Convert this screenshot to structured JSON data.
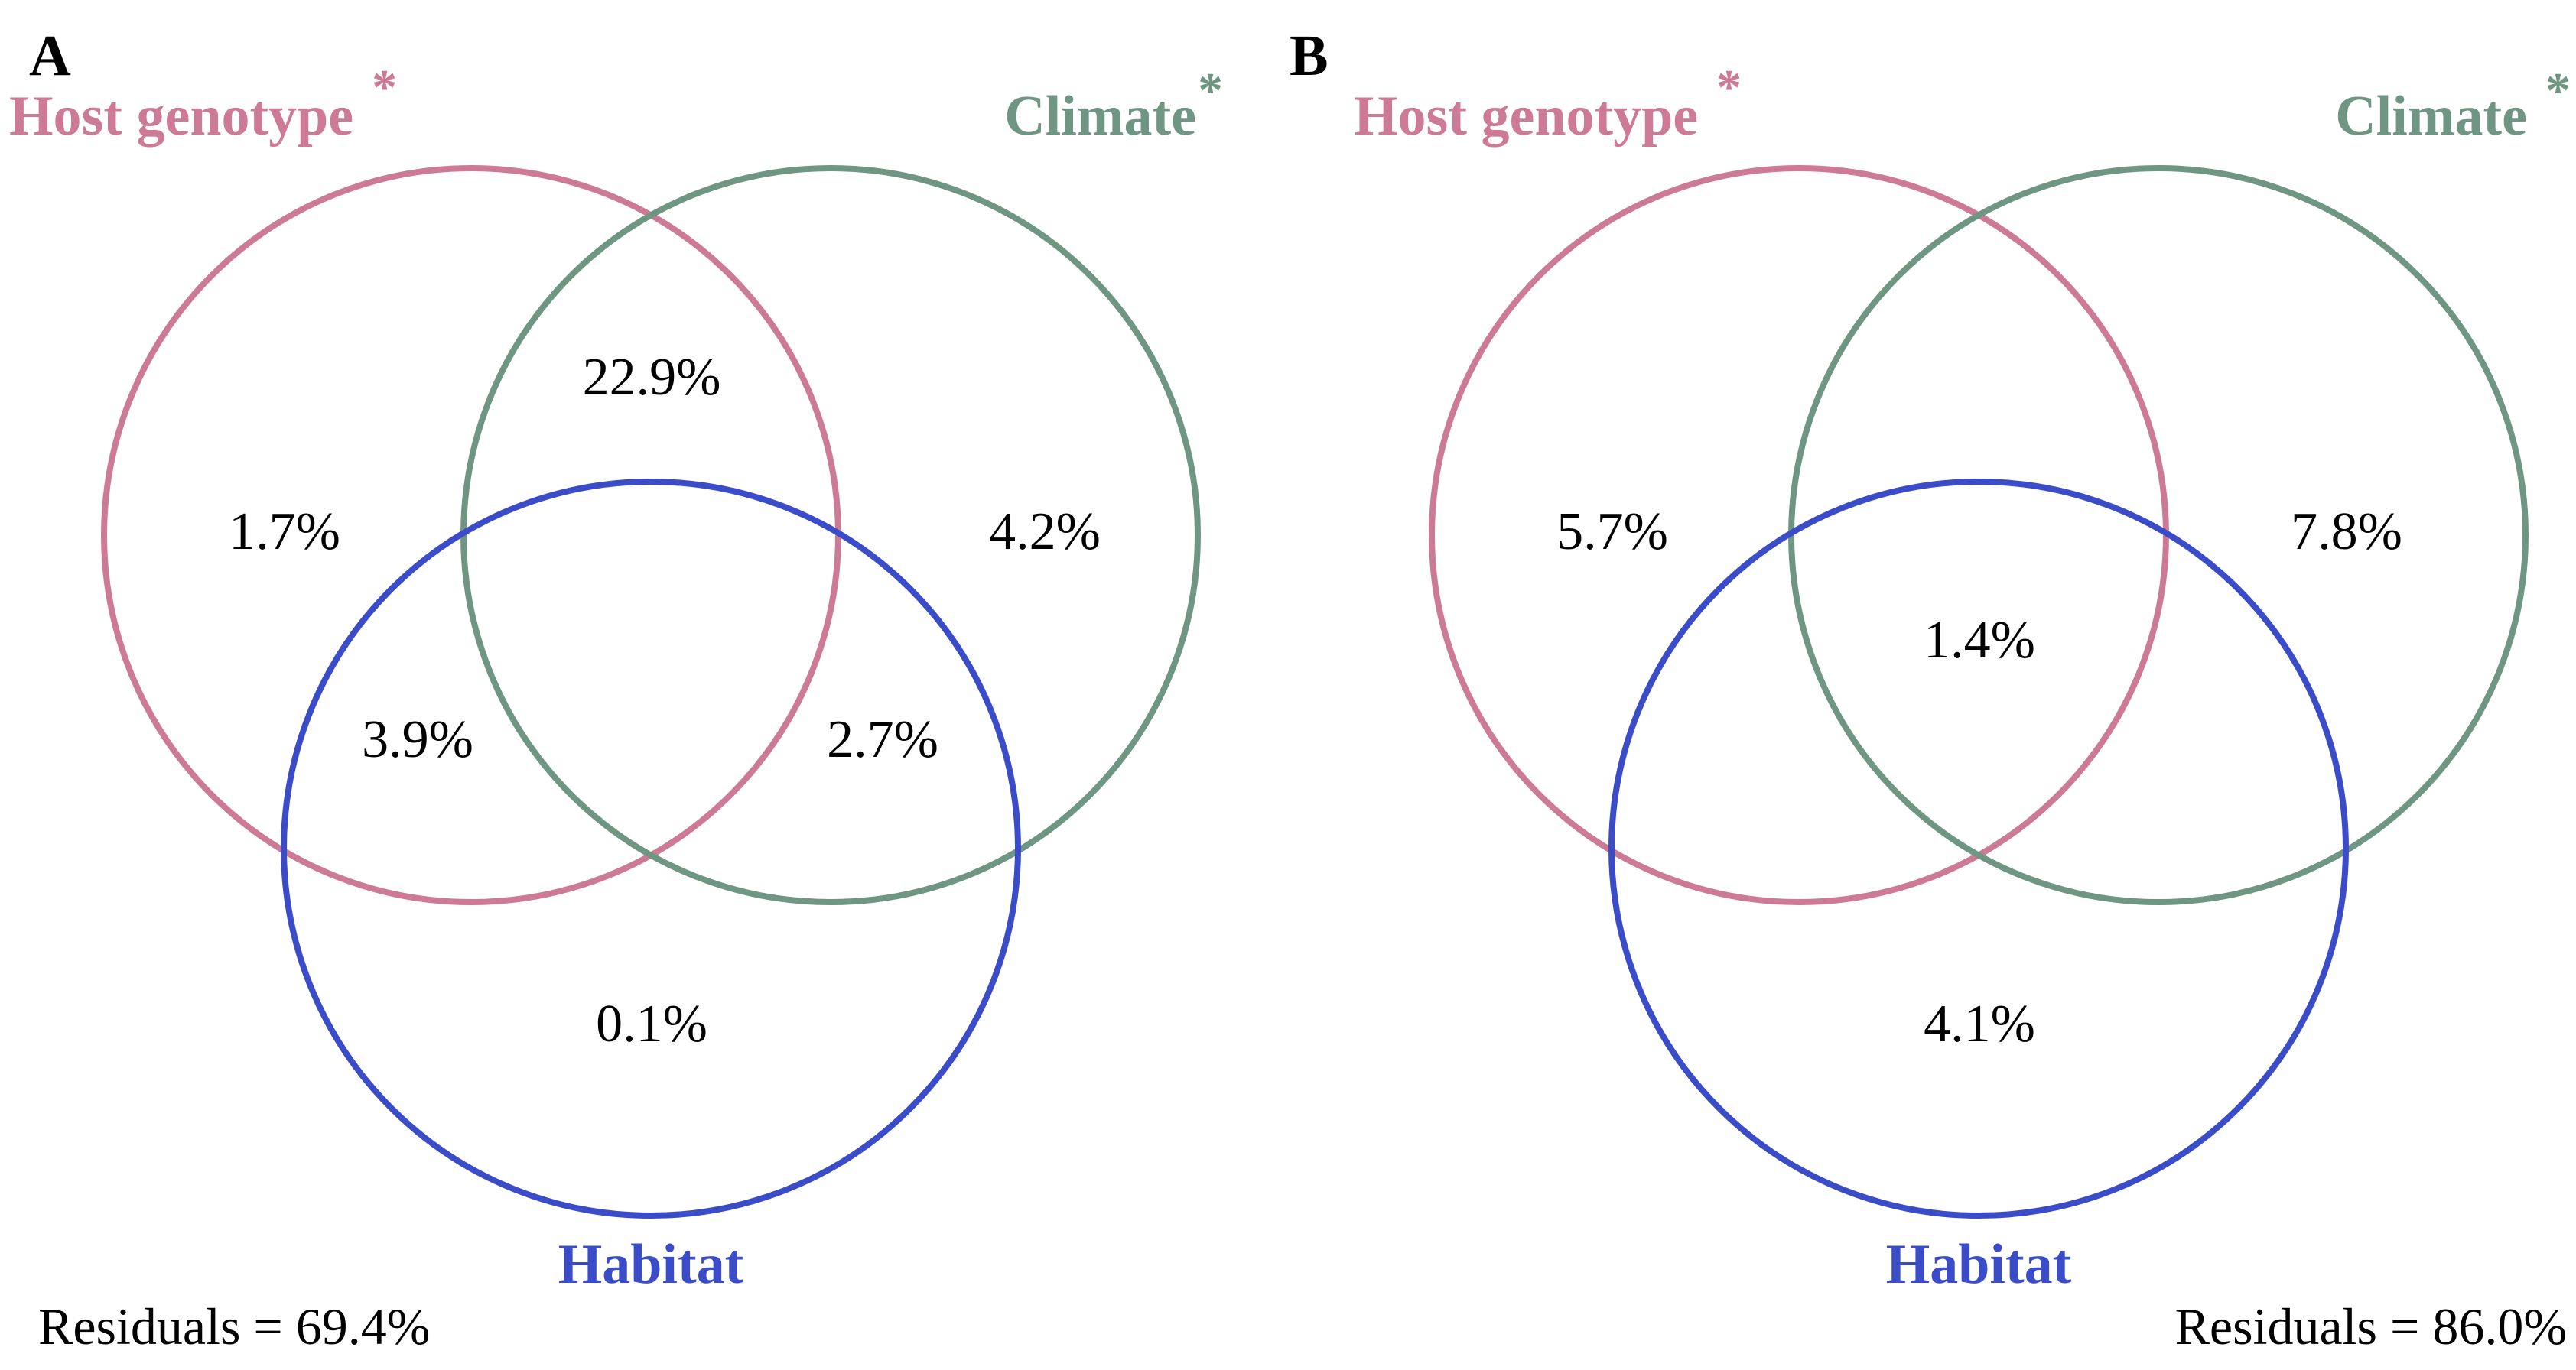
{
  "colors": {
    "host": "#cc7a96",
    "climate": "#6f9683",
    "habitat": "#3b4cc8",
    "text": "#000000"
  },
  "panels": [
    {
      "letter": "A",
      "labels": {
        "host": "Host genotype",
        "host_star": "*",
        "climate": "Climate",
        "climate_star": "*",
        "habitat": "Habitat"
      },
      "regions": {
        "host_only": "1.7%",
        "host_climate": "22.9%",
        "climate_only": "4.2%",
        "host_habitat": "3.9%",
        "climate_habitat": "2.7%",
        "all_three": "",
        "habitat_only": "0.1%"
      },
      "residuals": "Residuals = 69.4%"
    },
    {
      "letter": "B",
      "labels": {
        "host": "Host genotype",
        "host_star": "*",
        "climate": "Climate",
        "climate_star": "*",
        "habitat": "Habitat"
      },
      "regions": {
        "host_only": "5.7%",
        "host_climate": "",
        "climate_only": "7.8%",
        "host_habitat": "",
        "climate_habitat": "",
        "all_three": "1.4%",
        "habitat_only": "4.1%"
      },
      "residuals": "Residuals = 86.0%"
    }
  ]
}
